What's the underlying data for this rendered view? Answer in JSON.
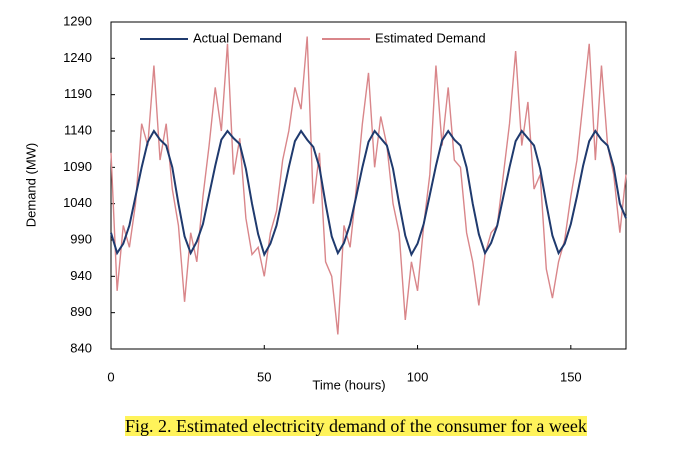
{
  "chart_data": {
    "type": "line",
    "caption": "Fig. 2.  Estimated electricity demand of the consumer for a week",
    "x_label": "Time (hours)",
    "y_label": "Demand (MW)",
    "x": [
      0,
      2,
      4,
      6,
      8,
      10,
      12,
      14,
      16,
      18,
      20,
      22,
      24,
      26,
      28,
      30,
      32,
      34,
      36,
      38,
      40,
      42,
      44,
      46,
      48,
      50,
      52,
      54,
      56,
      58,
      60,
      62,
      64,
      66,
      68,
      70,
      72,
      74,
      76,
      78,
      80,
      82,
      84,
      86,
      88,
      90,
      92,
      94,
      96,
      98,
      100,
      102,
      104,
      106,
      108,
      110,
      112,
      114,
      116,
      118,
      120,
      122,
      124,
      126,
      128,
      130,
      132,
      134,
      136,
      138,
      140,
      142,
      144,
      146,
      148,
      150,
      152,
      154,
      156,
      158,
      160,
      162,
      164,
      166,
      168
    ],
    "series": [
      {
        "name": "Actual Demand",
        "color": "#1f3a6e",
        "values": [
          1000,
          972,
          985,
          1010,
          1050,
          1090,
          1125,
          1140,
          1128,
          1120,
          1090,
          1040,
          995,
          972,
          988,
          1012,
          1052,
          1092,
          1128,
          1140,
          1130,
          1122,
          1088,
          1040,
          998,
          970,
          985,
          1010,
          1050,
          1090,
          1126,
          1140,
          1128,
          1118,
          1090,
          1040,
          995,
          972,
          986,
          1012,
          1050,
          1090,
          1125,
          1140,
          1130,
          1120,
          1088,
          1040,
          996,
          970,
          985,
          1012,
          1052,
          1092,
          1127,
          1140,
          1128,
          1120,
          1090,
          1040,
          998,
          972,
          986,
          1010,
          1050,
          1090,
          1126,
          1140,
          1130,
          1120,
          1088,
          1040,
          996,
          972,
          985,
          1012,
          1050,
          1092,
          1126,
          1140,
          1128,
          1120,
          1090,
          1040,
          1020
        ]
      },
      {
        "name": "Estimated Demand",
        "color": "#d9868a",
        "values": [
          1110,
          920,
          1010,
          980,
          1040,
          1150,
          1120,
          1230,
          1100,
          1150,
          1060,
          1010,
          905,
          1000,
          960,
          1050,
          1120,
          1200,
          1140,
          1260,
          1080,
          1130,
          1020,
          970,
          980,
          940,
          1000,
          1030,
          1100,
          1140,
          1200,
          1170,
          1270,
          1040,
          1110,
          960,
          940,
          860,
          1010,
          980,
          1060,
          1150,
          1220,
          1090,
          1160,
          1120,
          1040,
          1000,
          880,
          960,
          920,
          1010,
          1080,
          1230,
          1120,
          1200,
          1100,
          1090,
          1000,
          960,
          900,
          970,
          1000,
          1010,
          1080,
          1150,
          1250,
          1120,
          1180,
          1060,
          1080,
          950,
          910,
          960,
          990,
          1050,
          1100,
          1180,
          1260,
          1100,
          1230,
          1120,
          1080,
          1000,
          1080
        ]
      }
    ],
    "xlim": [
      0,
      168
    ],
    "xticks": [
      0,
      50,
      100,
      150
    ],
    "ylim": [
      840,
      1290
    ],
    "yticks": [
      840,
      890,
      940,
      990,
      1040,
      1090,
      1140,
      1190,
      1240,
      1290
    ],
    "grid": false,
    "legend": "top"
  }
}
